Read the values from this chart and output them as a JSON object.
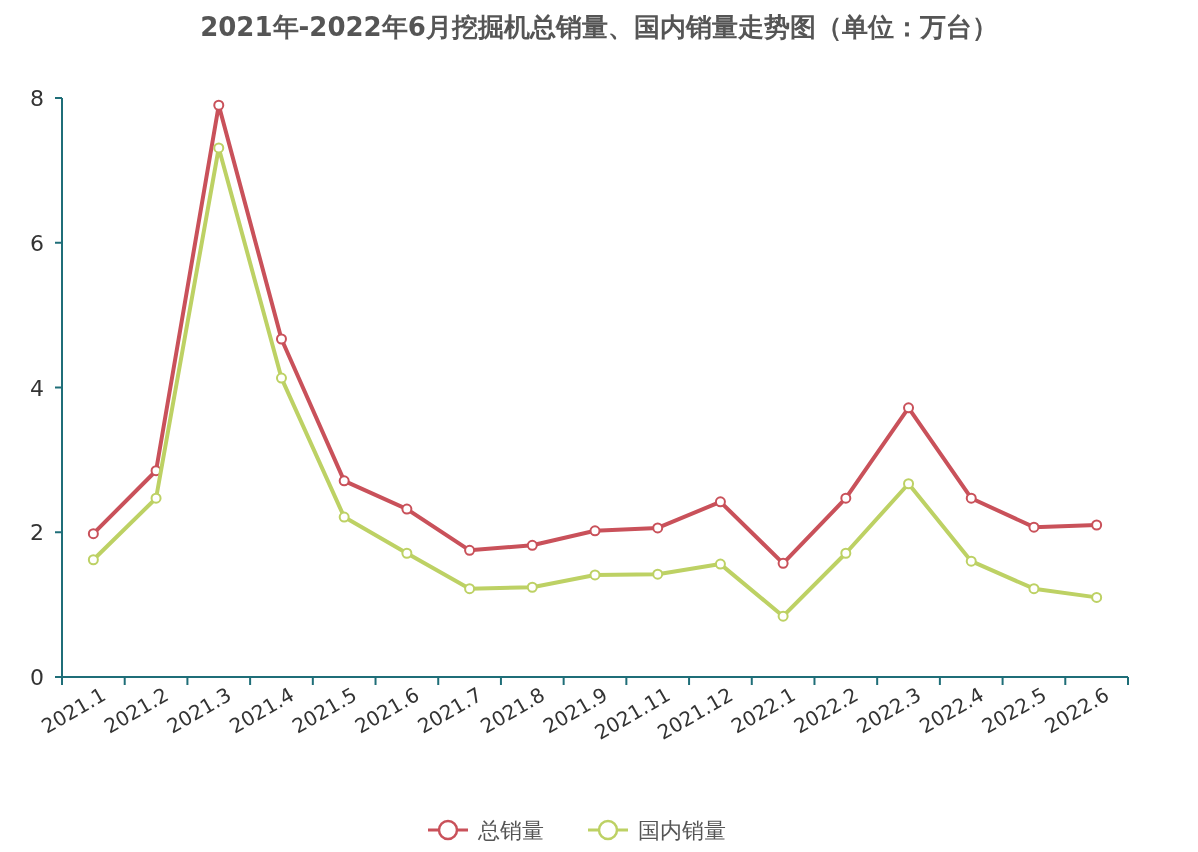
{
  "chart_data": {
    "type": "line",
    "title": "2021年-2022年6月挖掘机总销量、国内销量走势图（单位：万台）",
    "categories": [
      "2021.1",
      "2021.2",
      "2021.3",
      "2021.4",
      "2021.5",
      "2021.6",
      "2021.7",
      "2021.8",
      "2021.9",
      "2021.11",
      "2021.12",
      "2022.1",
      "2022.2",
      "2022.3",
      "2022.4",
      "2022.5",
      "2022.6"
    ],
    "series": [
      {
        "name": "总销量",
        "color": "#c9515a",
        "values": [
          1.98,
          2.85,
          7.9,
          4.67,
          2.71,
          2.32,
          1.75,
          1.82,
          2.02,
          2.06,
          2.42,
          1.57,
          2.47,
          3.72,
          2.47,
          2.07,
          2.1
        ]
      },
      {
        "name": "国内销量",
        "color": "#bdd164",
        "values": [
          1.62,
          2.47,
          7.31,
          4.13,
          2.21,
          1.71,
          1.22,
          1.24,
          1.41,
          1.42,
          1.56,
          0.84,
          1.71,
          2.67,
          1.6,
          1.22,
          1.1
        ]
      }
    ],
    "ylim": [
      0,
      8
    ],
    "yticks": [
      0,
      2,
      4,
      6,
      8
    ],
    "grid": false,
    "legend": "bottom",
    "marker": "circle",
    "line_style": "solid"
  }
}
